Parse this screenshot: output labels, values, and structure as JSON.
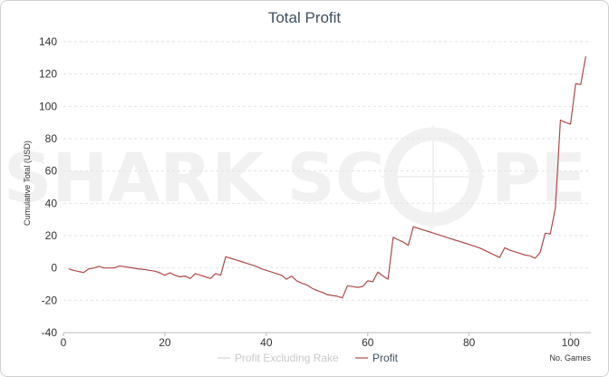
{
  "watermark": {
    "left": "SHARK SC",
    "right": "PE"
  },
  "chart_data": {
    "type": "line",
    "title": "Total Profit",
    "xlabel": "No. Games",
    "ylabel": "Cumulative Total (USD)",
    "xlim": [
      0,
      104
    ],
    "ylim": [
      -40,
      140
    ],
    "x_ticks": [
      0,
      20,
      40,
      60,
      80,
      100
    ],
    "y_ticks": [
      -40,
      -20,
      0,
      20,
      40,
      60,
      80,
      100,
      120,
      140
    ],
    "grid": true,
    "legend": "bottom",
    "series": [
      {
        "name": "Profit Excluding Rake",
        "color": "#d6d6d6",
        "x": [],
        "y": []
      },
      {
        "name": "Profit",
        "color": "#b04a48",
        "x": [
          1,
          2,
          3,
          4,
          5,
          6,
          7,
          8,
          9,
          10,
          11,
          12,
          13,
          14,
          15,
          16,
          17,
          18,
          19,
          20,
          21,
          22,
          23,
          24,
          25,
          26,
          27,
          28,
          29,
          30,
          31,
          32,
          33,
          34,
          35,
          36,
          37,
          38,
          39,
          40,
          41,
          42,
          43,
          44,
          45,
          46,
          47,
          48,
          49,
          50,
          51,
          52,
          53,
          54,
          55,
          56,
          57,
          58,
          59,
          60,
          61,
          62,
          63,
          64,
          65,
          66,
          67,
          68,
          69,
          70,
          71,
          72,
          73,
          74,
          75,
          76,
          77,
          78,
          79,
          80,
          81,
          82,
          83,
          84,
          85,
          86,
          87,
          88,
          89,
          90,
          91,
          92,
          93,
          94,
          95,
          96,
          97,
          98,
          99,
          100,
          101,
          102,
          103
        ],
        "y": [
          -0.5,
          -1.5,
          -2.2,
          -2.8,
          -0.5,
          0,
          1,
          0,
          0,
          0,
          1.2,
          0.8,
          0.3,
          -0.2,
          -0.7,
          -1,
          -1.5,
          -2,
          -3,
          -4.5,
          -3,
          -4.5,
          -5.5,
          -5,
          -6.5,
          -3.5,
          -4.5,
          -5.5,
          -6.5,
          -3.5,
          -4.5,
          7,
          6,
          5,
          4,
          3,
          2,
          1,
          -0.5,
          -1.5,
          -2.5,
          -3.5,
          -4.5,
          -7,
          -5,
          -8,
          -9.5,
          -10.5,
          -12.5,
          -14,
          -15,
          -16.5,
          -17,
          -17.5,
          -18.5,
          -11,
          -11.5,
          -12,
          -11.5,
          -8,
          -8.5,
          -2.5,
          -5,
          -7,
          19,
          17.5,
          16,
          14,
          25.5,
          24.5,
          23.5,
          22.5,
          21.5,
          20.5,
          19.5,
          18.5,
          17.5,
          16.5,
          15.5,
          14.5,
          13.5,
          12.5,
          11,
          9.5,
          8,
          6.5,
          12.5,
          11,
          10,
          9,
          8,
          7.5,
          6,
          9.5,
          21.5,
          21,
          37,
          91.5,
          90,
          89,
          114,
          113.5,
          131
        ]
      }
    ]
  }
}
